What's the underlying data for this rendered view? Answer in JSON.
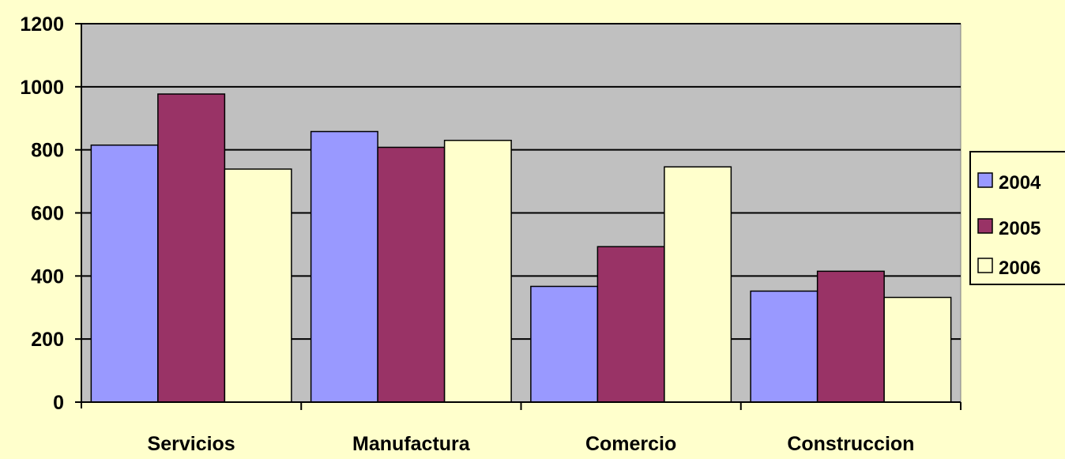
{
  "chart_data": {
    "type": "bar",
    "categories": [
      "Servicios",
      "Manufactura",
      "Comercio",
      "Construccion"
    ],
    "series": [
      {
        "name": "2004",
        "color": "#9999FF",
        "values": [
          815,
          858,
          367,
          352
        ]
      },
      {
        "name": "2005",
        "color": "#993366",
        "values": [
          977,
          808,
          493,
          415
        ]
      },
      {
        "name": "2006",
        "color": "#FFFFCC",
        "values": [
          739,
          830,
          746,
          332
        ]
      }
    ],
    "yticks": [
      "0",
      "200",
      "400",
      "600",
      "800",
      "1000",
      "1200"
    ],
    "ylim": [
      0,
      1200
    ],
    "grid": true,
    "legend_position": "right",
    "plot_background": "#C0C0C0",
    "page_background": "#FFFFCC"
  }
}
